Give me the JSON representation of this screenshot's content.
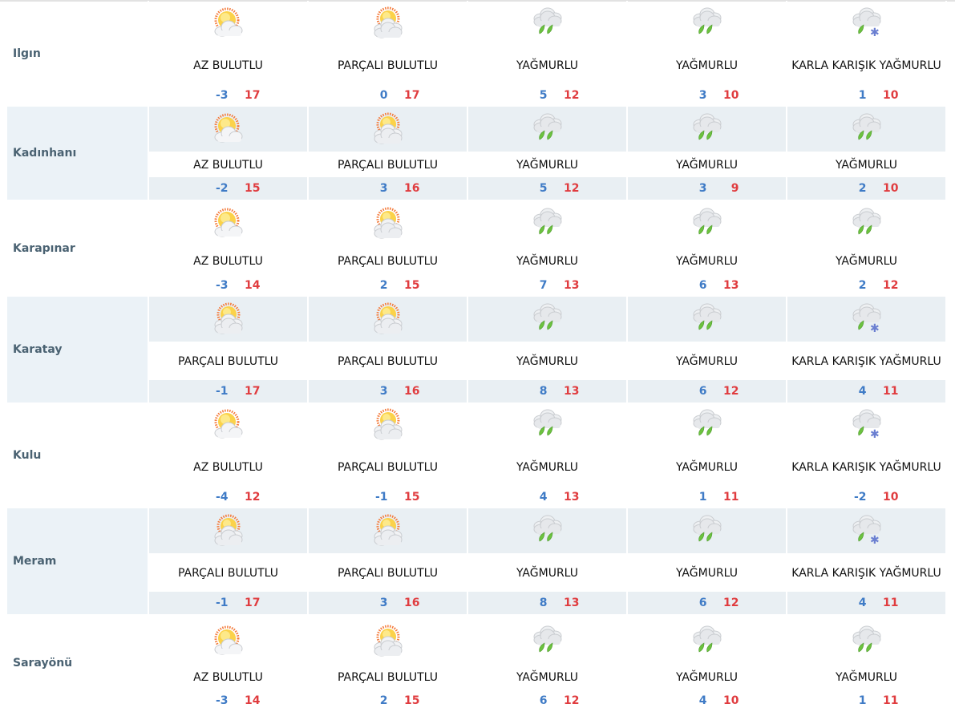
{
  "colors": {
    "min": "#3f7bc6",
    "max": "#e03c3f",
    "alt_row": "#e9eff3"
  },
  "rows": [
    {
      "city": "Ilgın",
      "days": [
        {
          "icon": "sun-cloud-icon",
          "cond": "AZ BULUTLU",
          "min": "-3",
          "max": "17"
        },
        {
          "icon": "partly-cloudy-icon",
          "cond": "PARÇALI BULUTLU",
          "min": "0",
          "max": "17"
        },
        {
          "icon": "rain-icon",
          "cond": "YAĞMURLU",
          "min": "5",
          "max": "12"
        },
        {
          "icon": "rain-icon",
          "cond": "YAĞMURLU",
          "min": "3",
          "max": "10"
        },
        {
          "icon": "sleet-icon",
          "cond": "KARLA KARIŞIK YAĞMURLU",
          "min": "1",
          "max": "10"
        }
      ]
    },
    {
      "city": "Kadınhanı",
      "days": [
        {
          "icon": "sun-cloud-icon",
          "cond": "AZ BULUTLU",
          "min": "-2",
          "max": "15"
        },
        {
          "icon": "partly-cloudy-icon",
          "cond": "PARÇALI BULUTLU",
          "min": "3",
          "max": "16"
        },
        {
          "icon": "rain-icon",
          "cond": "YAĞMURLU",
          "min": "5",
          "max": "12"
        },
        {
          "icon": "rain-icon",
          "cond": "YAĞMURLU",
          "min": "3",
          "max": "9"
        },
        {
          "icon": "rain-icon",
          "cond": "YAĞMURLU",
          "min": "2",
          "max": "10"
        }
      ]
    },
    {
      "city": "Karapınar",
      "days": [
        {
          "icon": "sun-cloud-icon",
          "cond": "AZ BULUTLU",
          "min": "-3",
          "max": "14"
        },
        {
          "icon": "partly-cloudy-icon",
          "cond": "PARÇALI BULUTLU",
          "min": "2",
          "max": "15"
        },
        {
          "icon": "rain-icon",
          "cond": "YAĞMURLU",
          "min": "7",
          "max": "13"
        },
        {
          "icon": "rain-icon",
          "cond": "YAĞMURLU",
          "min": "6",
          "max": "13"
        },
        {
          "icon": "rain-icon",
          "cond": "YAĞMURLU",
          "min": "2",
          "max": "12"
        }
      ]
    },
    {
      "city": "Karatay",
      "days": [
        {
          "icon": "partly-cloudy-icon",
          "cond": "PARÇALI BULUTLU",
          "min": "-1",
          "max": "17"
        },
        {
          "icon": "partly-cloudy-icon",
          "cond": "PARÇALI BULUTLU",
          "min": "3",
          "max": "16"
        },
        {
          "icon": "rain-icon",
          "cond": "YAĞMURLU",
          "min": "8",
          "max": "13"
        },
        {
          "icon": "rain-icon",
          "cond": "YAĞMURLU",
          "min": "6",
          "max": "12"
        },
        {
          "icon": "sleet-icon",
          "cond": "KARLA KARIŞIK YAĞMURLU",
          "min": "4",
          "max": "11"
        }
      ]
    },
    {
      "city": "Kulu",
      "days": [
        {
          "icon": "sun-cloud-icon",
          "cond": "AZ BULUTLU",
          "min": "-4",
          "max": "12"
        },
        {
          "icon": "partly-cloudy-icon",
          "cond": "PARÇALI BULUTLU",
          "min": "-1",
          "max": "15"
        },
        {
          "icon": "rain-icon",
          "cond": "YAĞMURLU",
          "min": "4",
          "max": "13"
        },
        {
          "icon": "rain-icon",
          "cond": "YAĞMURLU",
          "min": "1",
          "max": "11"
        },
        {
          "icon": "sleet-icon",
          "cond": "KARLA KARIŞIK YAĞMURLU",
          "min": "-2",
          "max": "10"
        }
      ]
    },
    {
      "city": "Meram",
      "days": [
        {
          "icon": "partly-cloudy-icon",
          "cond": "PARÇALI BULUTLU",
          "min": "-1",
          "max": "17"
        },
        {
          "icon": "partly-cloudy-icon",
          "cond": "PARÇALI BULUTLU",
          "min": "3",
          "max": "16"
        },
        {
          "icon": "rain-icon",
          "cond": "YAĞMURLU",
          "min": "8",
          "max": "13"
        },
        {
          "icon": "rain-icon",
          "cond": "YAĞMURLU",
          "min": "6",
          "max": "12"
        },
        {
          "icon": "sleet-icon",
          "cond": "KARLA KARIŞIK YAĞMURLU",
          "min": "4",
          "max": "11"
        }
      ]
    },
    {
      "city": "Sarayönü",
      "days": [
        {
          "icon": "sun-cloud-icon",
          "cond": "AZ BULUTLU",
          "min": "-3",
          "max": "14"
        },
        {
          "icon": "partly-cloudy-icon",
          "cond": "PARÇALI BULUTLU",
          "min": "2",
          "max": "15"
        },
        {
          "icon": "rain-icon",
          "cond": "YAĞMURLU",
          "min": "6",
          "max": "12"
        },
        {
          "icon": "rain-icon",
          "cond": "YAĞMURLU",
          "min": "4",
          "max": "10"
        },
        {
          "icon": "rain-icon",
          "cond": "YAĞMURLU",
          "min": "1",
          "max": "11"
        }
      ]
    }
  ]
}
